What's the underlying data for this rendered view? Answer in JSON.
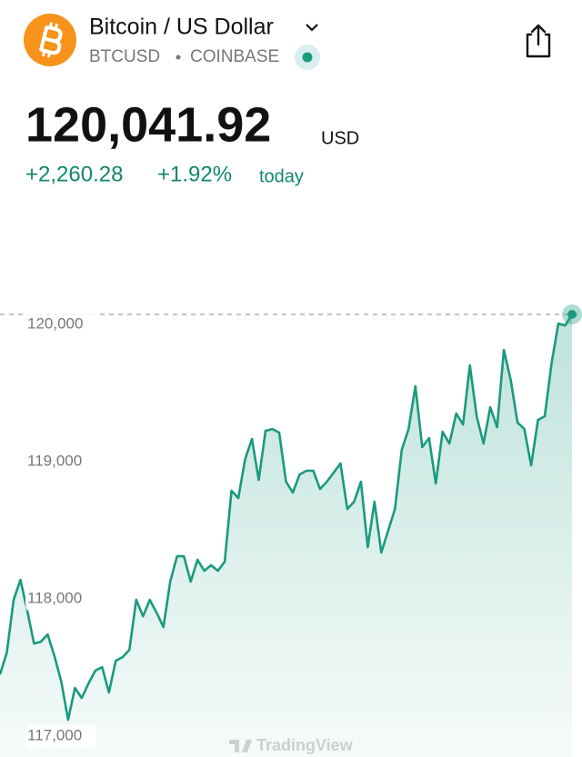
{
  "header": {
    "title": "Bitcoin / US Dollar",
    "symbol": "BTCUSD",
    "exchange": "COINBASE"
  },
  "quote": {
    "price": "120,041.92",
    "currency": "USD",
    "change": "+2,260.28",
    "change_percent": "+1.92%",
    "period": "today"
  },
  "chart_data": {
    "type": "area",
    "color": "#1a9a7e",
    "values": [
      117417,
      117576,
      117960,
      118106,
      117881,
      117642,
      117655,
      117708,
      117550,
      117364,
      117086,
      117318,
      117245,
      117351,
      117444,
      117470,
      117285,
      117516,
      117543,
      117596,
      117960,
      117841,
      117960,
      117867,
      117761,
      118093,
      118278,
      118278,
      118093,
      118252,
      118172,
      118212,
      118172,
      118238,
      118755,
      118702,
      118987,
      119132,
      118834,
      119192,
      119205,
      119179,
      118821,
      118742,
      118874,
      118901,
      118901,
      118768,
      118821,
      118887,
      118954,
      118622,
      118675,
      118821,
      118344,
      118675,
      118305,
      118463,
      118622,
      119053,
      119205,
      119517,
      119073,
      119139,
      118808,
      119185,
      119099,
      119318,
      119238,
      119669,
      119298,
      119099,
      119364,
      119218,
      119781,
      119563,
      119252,
      119205,
      118940,
      119271,
      119298,
      119682,
      119974,
      119960,
      120040
    ],
    "ylim": [
      116815,
      120146
    ],
    "yticks": [
      {
        "value": 117000,
        "label": "117,000"
      },
      {
        "value": 118000,
        "label": "118,000"
      },
      {
        "value": 119000,
        "label": "119,000"
      },
      {
        "value": 120000,
        "label": "120,000"
      }
    ],
    "watermark": "TradingView"
  }
}
